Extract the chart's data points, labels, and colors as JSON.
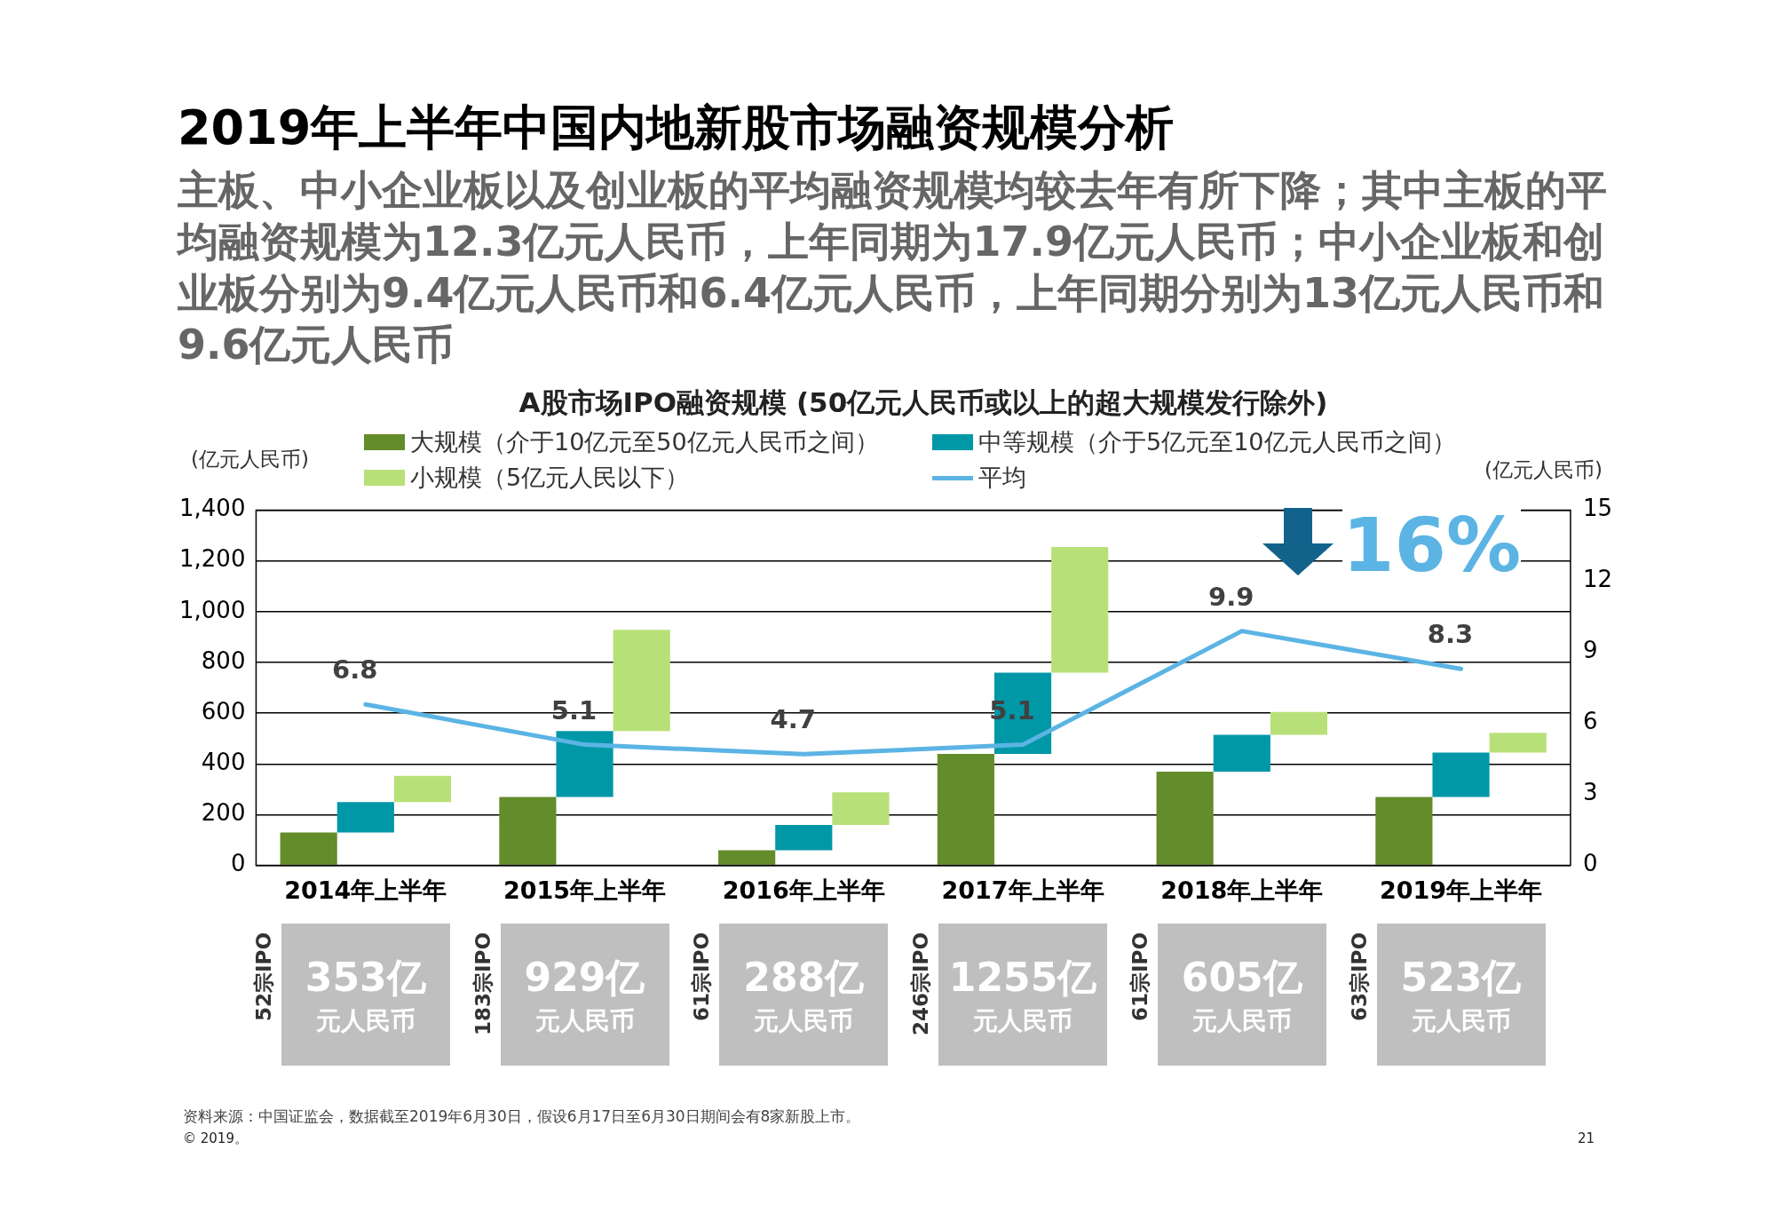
{
  "chart_data": {
    "type": "bar",
    "title": "2019年上半年中国内地新股市场融资规模分析",
    "subtitle": "主板、中小企业板以及创业板的平均融资规模均较去年有所下降；其中主板的平均融资规模为12.3亿元人民币，上年同期为17.9亿元人民币；中小企业板和创业板分别为9.4亿元人民币和6.4亿元人民币，上年同期分别为13亿元人民币和9.6亿元人民币",
    "ylabel": "(亿元人民币)",
    "y2label": "(亿元人民币)",
    "categories": [
      "2014年上半年",
      "2015年上半年",
      "2016年上半年",
      "2017年上半年",
      "2018年上半年",
      "2019年上半年"
    ],
    "series": [
      {
        "name": "大规模（介于10亿元至50亿元人民币之间）",
        "color": "#638c2a",
        "values": [
          130,
          270,
          60,
          440,
          370,
          270
        ]
      },
      {
        "name": "中等规模（介于5亿元至10亿元人民币之间）",
        "color": "#0097a7",
        "values": [
          120,
          260,
          100,
          320,
          145,
          175
        ],
        "base": [
          130,
          270,
          60,
          440,
          370,
          270
        ]
      },
      {
        "name": "小规模（5亿元人民以下）",
        "color": "#b8e078",
        "values": [
          103,
          399,
          128,
          495,
          90,
          78
        ],
        "base": [
          250,
          530,
          160,
          760,
          515,
          445
        ]
      },
      {
        "name": "平均",
        "type": "line",
        "axis": "y2",
        "color": "#5bb4e4",
        "values": [
          6.8,
          5.1,
          4.7,
          5.1,
          9.9,
          8.3
        ],
        "value_labels": [
          "6.8",
          "5.1",
          "4.7",
          "5.1",
          "9.9",
          "8.3"
        ]
      }
    ],
    "totals": [
      "353亿元人民币",
      "929亿元人民币",
      "288亿元人民币",
      "1255亿元人民币",
      "605亿元人民币",
      "523亿元人民币"
    ],
    "ylim": [
      0,
      1400
    ],
    "yticks": [
      0,
      {
        "value": 200,
        "label": "200"
      },
      {
        "value": 400,
        "label": "400"
      },
      {
        "value": 600,
        "label": "600"
      },
      {
        "value": 800,
        "label": "800"
      },
      {
        "value": 1000,
        "label": "1,000"
      },
      {
        "value": 1200,
        "label": "1,200"
      },
      {
        "value": 1400,
        "label": "1,400"
      }
    ],
    "y2lim": [
      0,
      15
    ],
    "y2ticks": [
      0,
      3,
      6,
      9,
      12,
      15
    ],
    "grid": "y",
    "legend": "top",
    "annotations": [
      "A股市场IPO融资规模 (50亿元人民币或以上的超大规模发行除外)",
      "16%",
      "资料来源：中国证监会，数据截至2019年6月30日，假设6月17日至6月30日期间会有8家新股上市。",
      "© 2019。",
      "21",
      "52宗IPO",
      "183宗IPO",
      "61宗IPO",
      "246宗IPO",
      "61宗IPO",
      "63宗IPO"
    ]
  }
}
